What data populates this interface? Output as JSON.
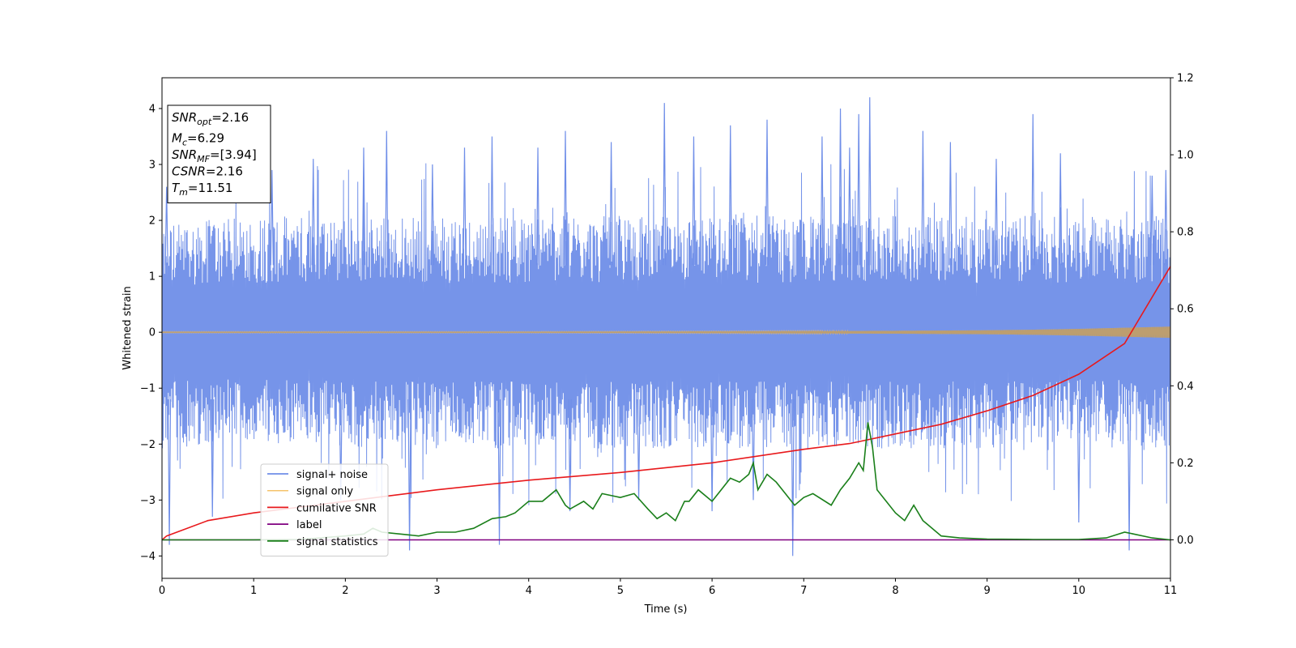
{
  "chart_data": {
    "type": "line",
    "title": "",
    "xlabel": "Time (s)",
    "ylabel": "Whitened strain",
    "ylabel_right": "",
    "xlim": [
      0,
      11
    ],
    "ylim": [
      -4.4,
      4.55
    ],
    "ylim_right": [
      -0.1,
      1.2
    ],
    "xticks": [
      "0",
      "1",
      "2",
      "3",
      "4",
      "5",
      "6",
      "7",
      "8",
      "9",
      "10",
      "11"
    ],
    "yticks": [
      "−4",
      "−3",
      "−2",
      "−1",
      "0",
      "1",
      "2",
      "3",
      "4"
    ],
    "yticks_right": [
      "0.0",
      "0.2",
      "0.4",
      "0.6",
      "0.8",
      "1.0",
      "1.2"
    ],
    "grid": false,
    "legend_placement": "lower-left",
    "annotation": {
      "lines": [
        {
          "var": "SNR",
          "sub": "opt",
          "value": "=2.16"
        },
        {
          "var": "M",
          "sub": "c",
          "value": "=6.29"
        },
        {
          "var": "SNR",
          "sub": "MF",
          "value": "=[3.94]"
        },
        {
          "var": "CSNR",
          "sub": "",
          "value": "=2.16"
        },
        {
          "var": "T",
          "sub": "m",
          "value": "=11.51"
        }
      ]
    },
    "series": [
      {
        "name": "signal+ noise",
        "axis": "left",
        "color": "#6f8ee8",
        "kind": "noise",
        "band_low": [
          -1.6,
          -1.5,
          -1.6,
          -1.6,
          -1.6,
          -1.6,
          -1.6,
          -1.6,
          -1.6,
          -1.6,
          -1.5,
          -1.6
        ],
        "band_high": [
          1.5,
          1.6,
          1.6,
          1.6,
          1.6,
          1.6,
          1.6,
          1.6,
          1.6,
          1.6,
          1.6,
          1.6
        ],
        "spikes": [
          [
            0.05,
            2.6
          ],
          [
            0.08,
            -3.8
          ],
          [
            0.55,
            -3.3
          ],
          [
            1.2,
            2.9
          ],
          [
            1.65,
            3.1
          ],
          [
            1.95,
            -3.0
          ],
          [
            2.2,
            3.3
          ],
          [
            2.45,
            3.6
          ],
          [
            2.7,
            -3.9
          ],
          [
            2.95,
            3.0
          ],
          [
            3.3,
            3.3
          ],
          [
            3.6,
            3.5
          ],
          [
            3.68,
            -3.8
          ],
          [
            4.1,
            3.3
          ],
          [
            4.4,
            3.6
          ],
          [
            4.45,
            -3.2
          ],
          [
            4.9,
            3.4
          ],
          [
            5.2,
            -3.0
          ],
          [
            5.48,
            4.1
          ],
          [
            5.8,
            3.5
          ],
          [
            6.0,
            -3.2
          ],
          [
            6.2,
            3.7
          ],
          [
            6.45,
            -3.0
          ],
          [
            6.6,
            3.8
          ],
          [
            6.88,
            -4.0
          ],
          [
            7.2,
            3.5
          ],
          [
            7.4,
            4.0
          ],
          [
            7.5,
            3.3
          ],
          [
            7.6,
            3.9
          ],
          [
            7.72,
            4.2
          ],
          [
            8.3,
            3.6
          ],
          [
            8.6,
            3.4
          ],
          [
            9.1,
            3.1
          ],
          [
            9.5,
            3.9
          ],
          [
            9.8,
            3.2
          ],
          [
            10.0,
            -3.4
          ],
          [
            10.55,
            -3.9
          ],
          [
            10.8,
            2.8
          ],
          [
            10.95,
            2.9
          ]
        ]
      },
      {
        "name": "signal only",
        "axis": "left",
        "color": "#f5c36b",
        "kind": "chirp",
        "x": [
          0,
          2,
          4,
          6,
          7,
          8,
          9,
          9.5,
          10,
          10.5,
          11
        ],
        "amplitude": [
          0.01,
          0.01,
          0.01,
          0.015,
          0.02,
          0.025,
          0.035,
          0.045,
          0.06,
          0.08,
          0.1
        ]
      },
      {
        "name": "cumilative SNR",
        "axis": "right",
        "color": "#e8191c",
        "kind": "line",
        "x": [
          0,
          0.05,
          0.5,
          1,
          2,
          3,
          4,
          5,
          6,
          7,
          7.5,
          8,
          8.5,
          9,
          9.5,
          10,
          10.5,
          11
        ],
        "y": [
          0.0,
          0.01,
          0.05,
          0.07,
          0.1,
          0.13,
          0.155,
          0.175,
          0.2,
          0.235,
          0.25,
          0.275,
          0.3,
          0.335,
          0.375,
          0.43,
          0.51,
          0.71
        ]
      },
      {
        "name": "label",
        "axis": "right",
        "color": "#800080",
        "kind": "line",
        "x": [
          0,
          11
        ],
        "y": [
          0.0,
          0.0
        ]
      },
      {
        "name": "signal statistics",
        "axis": "right",
        "color": "#1a7f1a",
        "kind": "line",
        "x": [
          0,
          0.5,
          1.0,
          1.5,
          2.0,
          2.2,
          2.3,
          2.4,
          2.6,
          2.8,
          3.0,
          3.2,
          3.4,
          3.6,
          3.75,
          3.85,
          4.0,
          4.15,
          4.3,
          4.4,
          4.45,
          4.6,
          4.7,
          4.8,
          5.0,
          5.15,
          5.3,
          5.4,
          5.5,
          5.6,
          5.7,
          5.75,
          5.85,
          6.0,
          6.2,
          6.3,
          6.4,
          6.45,
          6.5,
          6.6,
          6.7,
          6.8,
          6.9,
          7.0,
          7.1,
          7.3,
          7.4,
          7.5,
          7.6,
          7.65,
          7.7,
          7.75,
          7.8,
          7.9,
          8.0,
          8.1,
          8.2,
          8.3,
          8.5,
          8.7,
          9.0,
          9.5,
          10.0,
          10.3,
          10.5,
          10.6,
          10.8,
          11.0
        ],
        "y": [
          0.0,
          0.0,
          0.0,
          0.001,
          0.01,
          0.015,
          0.03,
          0.02,
          0.015,
          0.01,
          0.02,
          0.02,
          0.03,
          0.055,
          0.06,
          0.07,
          0.1,
          0.1,
          0.13,
          0.09,
          0.08,
          0.1,
          0.08,
          0.12,
          0.11,
          0.12,
          0.08,
          0.055,
          0.07,
          0.05,
          0.1,
          0.1,
          0.13,
          0.1,
          0.16,
          0.15,
          0.17,
          0.2,
          0.13,
          0.17,
          0.15,
          0.12,
          0.09,
          0.11,
          0.12,
          0.09,
          0.13,
          0.16,
          0.2,
          0.18,
          0.305,
          0.24,
          0.13,
          0.1,
          0.07,
          0.05,
          0.09,
          0.05,
          0.01,
          0.005,
          0.002,
          0.001,
          0.001,
          0.005,
          0.02,
          0.015,
          0.005,
          0.0
        ]
      }
    ]
  }
}
